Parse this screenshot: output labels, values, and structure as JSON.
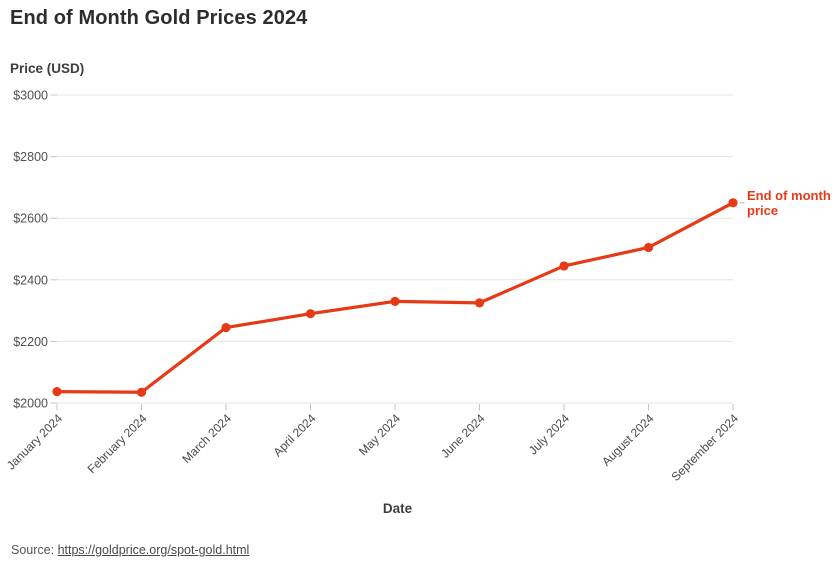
{
  "title": "End of Month Gold Prices 2024",
  "axis": {
    "y_title": "Price (USD)",
    "x_title": "Date"
  },
  "source": {
    "prefix": "Source: ",
    "link_text": "https://goldprice.org/spot-gold.html"
  },
  "colors": {
    "line": "#e63a17",
    "grid": "#e4e4e4",
    "tick": "#c4c4c4",
    "leader": "#b8b8b8",
    "tick_label": "#4f4f4f",
    "category_label": "#4a4a4a",
    "title_text": "#2d2d2d",
    "annotation": "#e63a17"
  },
  "chart_data": {
    "type": "line",
    "title": "End of Month Gold Prices 2024",
    "xlabel": "Date",
    "ylabel": "Price (USD)",
    "categories": [
      "January 2024",
      "February 2024",
      "March 2024",
      "April 2024",
      "May 2024",
      "June 2024",
      "July 2024",
      "August 2024",
      "September 2024"
    ],
    "series": [
      {
        "name": "End of month price",
        "values": [
          2037,
          2035,
          2245,
          2290,
          2330,
          2325,
          2445,
          2505,
          2650
        ]
      }
    ],
    "ylim": [
      2000,
      3000
    ],
    "yticks": [
      2000,
      2200,
      2400,
      2600,
      2800,
      3000
    ],
    "ytick_prefix": "$",
    "grid": "horizontal",
    "legend_position": "annotation-right-of-last-point",
    "annotation_lines": [
      "End of month",
      "price"
    ]
  }
}
